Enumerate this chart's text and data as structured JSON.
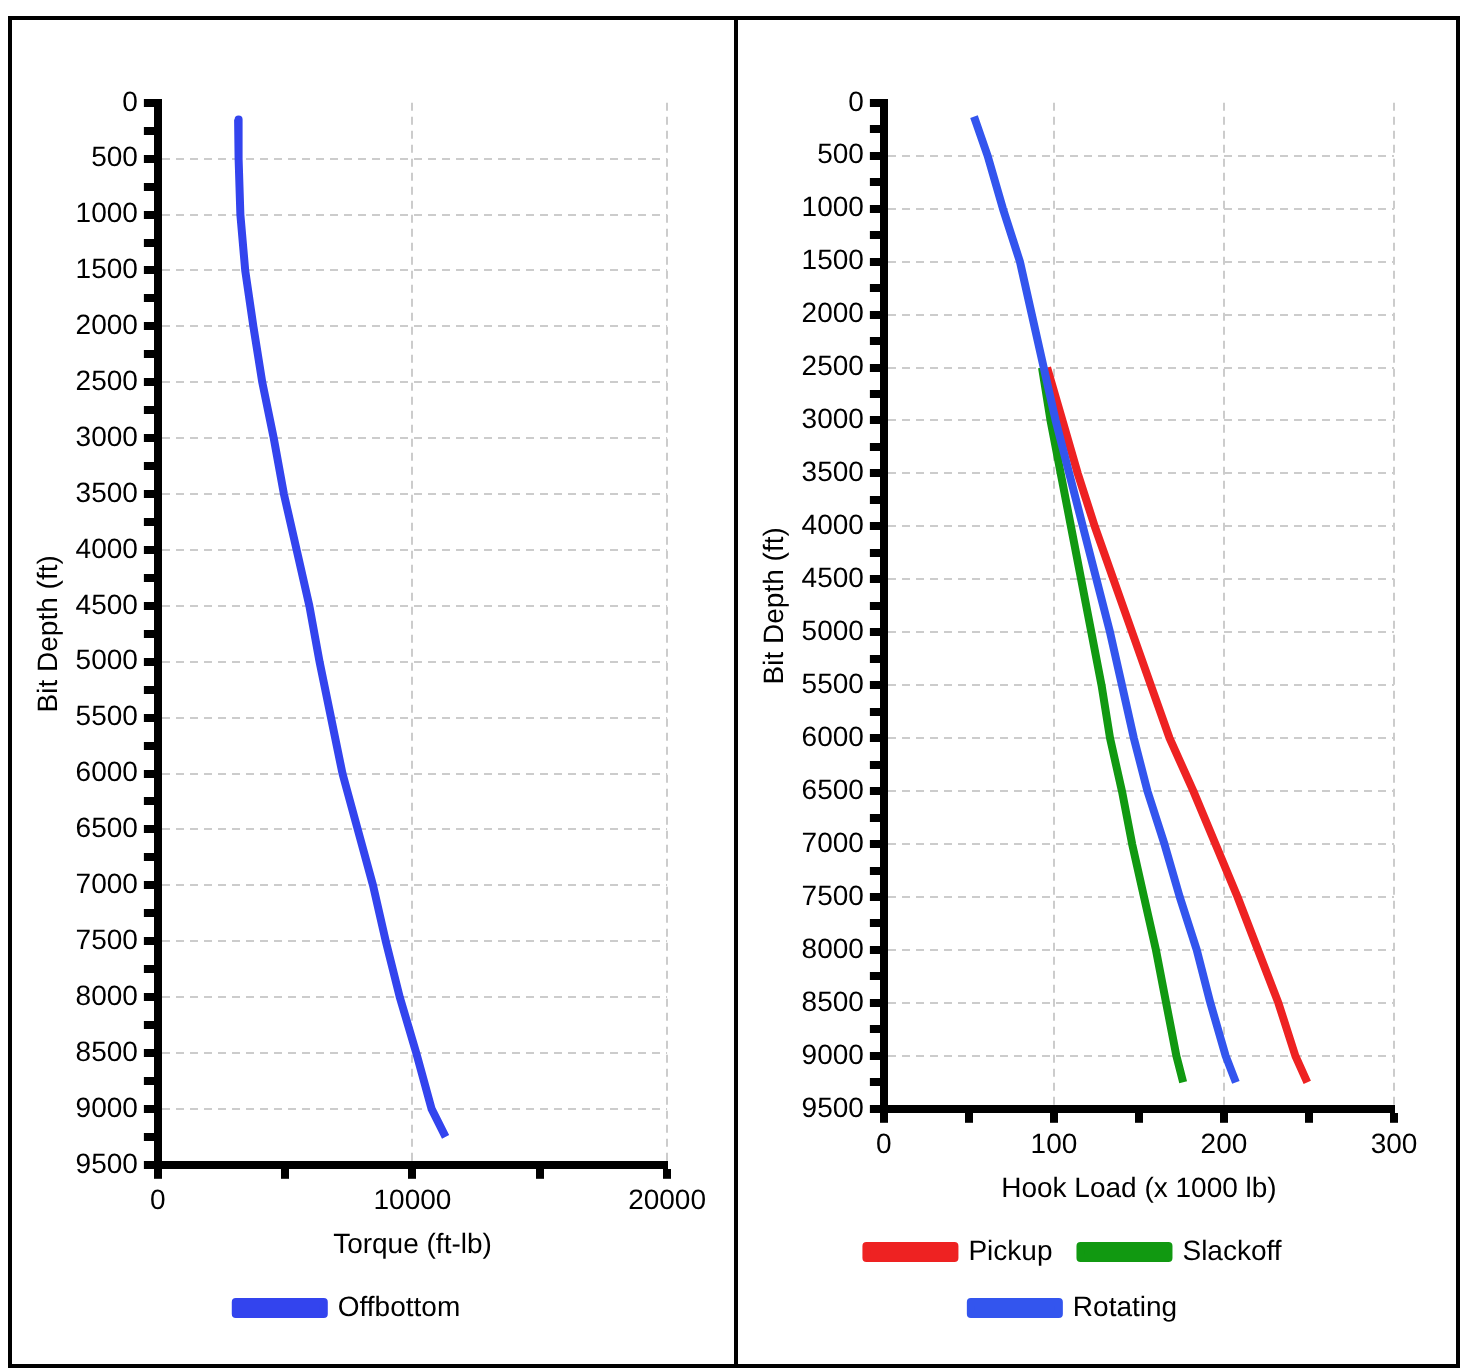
{
  "chart_data": [
    {
      "type": "line",
      "xlabel": "Torque (ft-lb)",
      "ylabel": "Bit Depth (ft)",
      "xlim": [
        0,
        20000
      ],
      "xticks": [
        0,
        {
          "value": 5000,
          "label": null
        },
        10000,
        {
          "value": 15000,
          "label": null
        },
        20000
      ],
      "ylim": [
        9500,
        0
      ],
      "yticks": [
        0,
        {
          "value": 250,
          "label": null
        },
        500,
        {
          "value": 750,
          "label": null
        },
        1000,
        {
          "value": 1250,
          "label": null
        },
        1500,
        {
          "value": 1750,
          "label": null
        },
        2000,
        {
          "value": 2250,
          "label": null
        },
        2500,
        {
          "value": 2750,
          "label": null
        },
        3000,
        {
          "value": 3250,
          "label": null
        },
        3500,
        {
          "value": 3750,
          "label": null
        },
        4000,
        {
          "value": 4250,
          "label": null
        },
        4500,
        {
          "value": 4750,
          "label": null
        },
        5000,
        {
          "value": 5250,
          "label": null
        },
        5500,
        {
          "value": 5750,
          "label": null
        },
        6000,
        {
          "value": 6250,
          "label": null
        },
        6500,
        {
          "value": 6750,
          "label": null
        },
        7000,
        {
          "value": 7250,
          "label": null
        },
        7500,
        {
          "value": 7750,
          "label": null
        },
        8000,
        {
          "value": 8250,
          "label": null
        },
        8500,
        {
          "value": 8750,
          "label": null
        },
        9000,
        {
          "value": 9250,
          "label": null
        },
        9500
      ],
      "grid": true,
      "legend": "bottom",
      "marker": "none",
      "line_style": "solid",
      "series": [
        {
          "name": "Offbottom",
          "color": "#3344ee",
          "x": [
            3150,
            3170,
            3240,
            3430,
            3750,
            4100,
            4550,
            4950,
            5450,
            5950,
            6350,
            6800,
            7250,
            7850,
            8450,
            8950,
            9500,
            10150,
            10750,
            11300
          ],
          "values": [
            150,
            500,
            1000,
            1500,
            2000,
            2500,
            3000,
            3500,
            4000,
            4500,
            5000,
            5500,
            6000,
            6500,
            7000,
            7500,
            8000,
            8500,
            9000,
            9250
          ]
        }
      ]
    },
    {
      "type": "line",
      "xlabel": "Hook Load (x 1000 lb)",
      "ylabel": "Bit Depth (ft)",
      "xlim": [
        0,
        300
      ],
      "xticks": [
        0,
        {
          "value": 50,
          "label": null
        },
        100,
        {
          "value": 150,
          "label": null
        },
        200,
        {
          "value": 250,
          "label": null
        },
        300
      ],
      "ylim": [
        9500,
        0
      ],
      "yticks": [
        0,
        {
          "value": 250,
          "label": null
        },
        500,
        {
          "value": 750,
          "label": null
        },
        1000,
        {
          "value": 1250,
          "label": null
        },
        1500,
        {
          "value": 1750,
          "label": null
        },
        2000,
        {
          "value": 2250,
          "label": null
        },
        2500,
        {
          "value": 2750,
          "label": null
        },
        3000,
        {
          "value": 3250,
          "label": null
        },
        3500,
        {
          "value": 3750,
          "label": null
        },
        4000,
        {
          "value": 4250,
          "label": null
        },
        4500,
        {
          "value": 4750,
          "label": null
        },
        5000,
        {
          "value": 5250,
          "label": null
        },
        5500,
        {
          "value": 5750,
          "label": null
        },
        6000,
        {
          "value": 6250,
          "label": null
        },
        6500,
        {
          "value": 6750,
          "label": null
        },
        7000,
        {
          "value": 7250,
          "label": null
        },
        7500,
        {
          "value": 7750,
          "label": null
        },
        8000,
        {
          "value": 8250,
          "label": null
        },
        8500,
        {
          "value": 8750,
          "label": null
        },
        9000,
        {
          "value": 9250,
          "label": null
        },
        9500
      ],
      "grid": true,
      "legend": "bottom",
      "marker": "none",
      "line_style": "solid",
      "series": [
        {
          "name": "Pickup",
          "color": "#ee2222",
          "x": [
            96,
            105,
            114,
            124,
            135,
            146,
            157,
            168,
            182,
            195,
            208,
            220,
            232,
            242,
            249
          ],
          "values": [
            2500,
            3000,
            3500,
            4000,
            4500,
            5000,
            5500,
            6000,
            6500,
            7000,
            7500,
            8000,
            8500,
            9000,
            9250
          ]
        },
        {
          "name": "Slackoff",
          "color": "#119911",
          "x": [
            93,
            98,
            104,
            110,
            116,
            122,
            128,
            133,
            140,
            146,
            153,
            160,
            166,
            172,
            176
          ],
          "values": [
            2500,
            3000,
            3500,
            4000,
            4500,
            5000,
            5500,
            6000,
            6500,
            7000,
            7500,
            8000,
            8500,
            9000,
            9250
          ]
        },
        {
          "name": "Rotating",
          "color": "#3355ee",
          "x": [
            53,
            61,
            70,
            80,
            87,
            94,
            101,
            109,
            117,
            125,
            133,
            140,
            147,
            155,
            165,
            174,
            184,
            192,
            201,
            207
          ],
          "values": [
            130,
            500,
            1000,
            1500,
            2000,
            2500,
            3000,
            3500,
            4000,
            4500,
            5000,
            5500,
            6000,
            6500,
            7000,
            7500,
            8000,
            8500,
            9000,
            9250
          ]
        }
      ]
    }
  ]
}
